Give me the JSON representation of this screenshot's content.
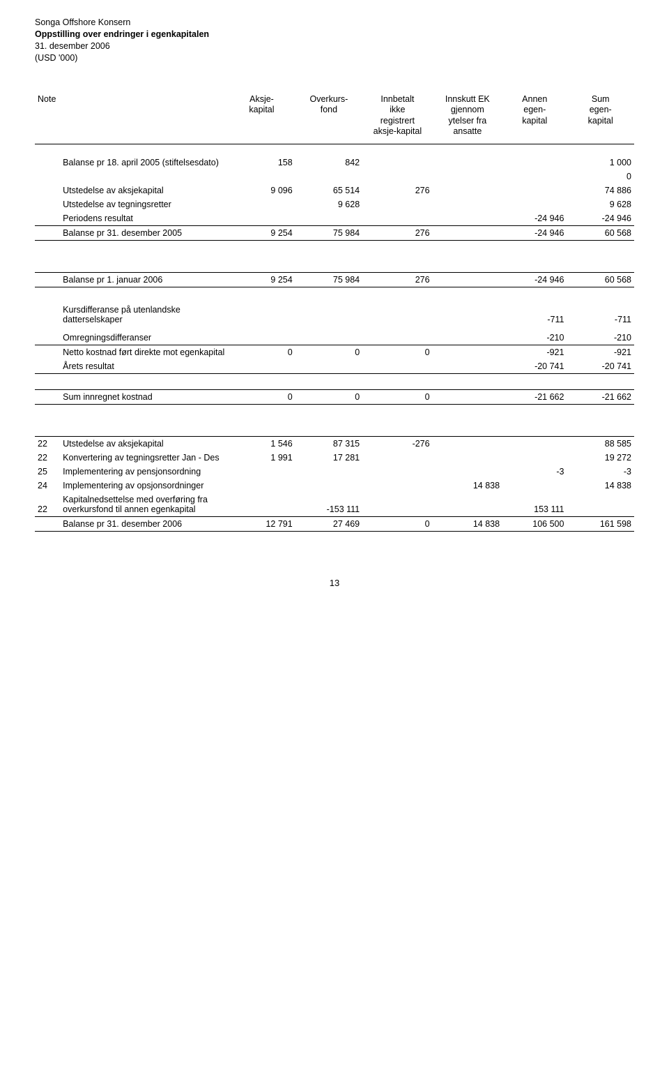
{
  "header": {
    "company": "Songa Offshore Konsern",
    "title": "Oppstilling over endringer i egenkapitalen",
    "date": "31. desember 2006",
    "unit": "(USD '000)"
  },
  "columns": {
    "note": "Note",
    "c1": "Aksje-\nkapital",
    "c2": "Overkurs-\nfond",
    "c3": "Innbetalt\nikke\nregistrert\naksje-kapital",
    "c4": "Innskutt EK\ngjennom\nytelser fra\nansatte",
    "c5": "Annen\negen-\nkapital",
    "c6": "Sum\negen-\nkapital"
  },
  "section1": {
    "r0": {
      "label": "Balanse pr 18. april 2005 (stiftelsesdato)",
      "v1": "158",
      "v2": "842",
      "v6": "1 000"
    },
    "rZero": {
      "v6": "0"
    },
    "r1": {
      "label": "Utstedelse av aksjekapital",
      "v1": "9 096",
      "v2": "65 514",
      "v3": "276",
      "v6": "74 886"
    },
    "r2": {
      "label": "Utstedelse av tegningsretter",
      "v2": "9 628",
      "v6": "9 628"
    },
    "r3": {
      "label": "Periodens resultat",
      "v5": "-24 946",
      "v6": "-24 946"
    },
    "r4": {
      "label": "Balanse pr 31. desember 2005",
      "v1": "9 254",
      "v2": "75 984",
      "v3": "276",
      "v5": "-24 946",
      "v6": "60 568"
    }
  },
  "section2": {
    "r0": {
      "label": "Balanse pr 1. januar 2006",
      "v1": "9 254",
      "v2": "75 984",
      "v3": "276",
      "v5": "-24 946",
      "v6": "60 568"
    }
  },
  "section3": {
    "r0": {
      "label": "Kursdifferanse på utenlandske datterselskaper",
      "v5": "-711",
      "v6": "-711"
    },
    "r1": {
      "label": "Omregningsdifferanser",
      "v5": "-210",
      "v6": "-210"
    },
    "r2": {
      "label": "Netto kostnad ført direkte mot egenkapital",
      "v1": "0",
      "v2": "0",
      "v3": "0",
      "v5": "-921",
      "v6": "-921"
    },
    "r3": {
      "label": "Årets resultat",
      "v5": "-20 741",
      "v6": "-20 741"
    }
  },
  "section4": {
    "r0": {
      "label": "Sum innregnet kostnad",
      "v1": "0",
      "v2": "0",
      "v3": "0",
      "v5": "-21 662",
      "v6": "-21 662"
    }
  },
  "section5": {
    "r0": {
      "note": "22",
      "label": "Utstedelse av aksjekapital",
      "v1": "1 546",
      "v2": "87 315",
      "v3": "-276",
      "v6": "88 585"
    },
    "r1": {
      "note": "22",
      "label": "Konvertering av tegningsretter Jan - Des",
      "v1": "1 991",
      "v2": "17 281",
      "v6": "19 272"
    },
    "r2": {
      "note": "25",
      "label": "Implementering av pensjonsordning",
      "v5": "-3",
      "v6": "-3"
    },
    "r3": {
      "note": "24",
      "label": "Implementering av opsjonsordninger",
      "v4": "14 838",
      "v6": "14 838"
    },
    "r4": {
      "note": "22",
      "label": "Kapitalnedsettelse med overføring fra overkursfond til annen egenkapital",
      "v2": "-153 111",
      "v5": "153 111"
    },
    "r5": {
      "label": "Balanse pr 31. desember 2006",
      "v1": "12 791",
      "v2": "27 469",
      "v3": "0",
      "v4": "14 838",
      "v5": "106 500",
      "v6": "161 598"
    }
  },
  "pageNumber": "13"
}
